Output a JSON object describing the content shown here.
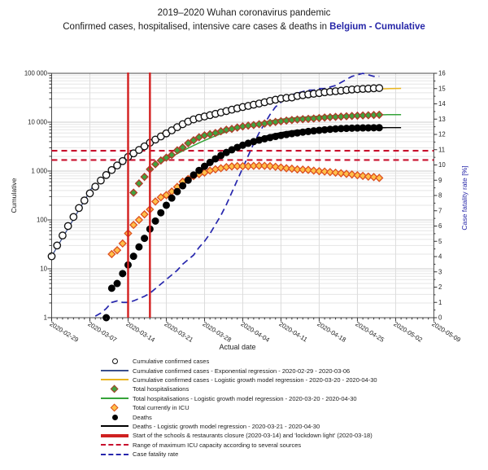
{
  "header": {
    "title": "2019–2020 Wuhan coronavirus pandemic",
    "subtitle_prefix": "Confirmed cases, hospitalised, intensive care cases & deaths in ",
    "subtitle_accent": "Belgium - Cumulative",
    "accent_color": "#2626a8"
  },
  "legend": {
    "items": [
      {
        "id": "confirmed",
        "marker": {
          "type": "circle-open"
        },
        "label": "Cumulative confirmed cases"
      },
      {
        "id": "confirmed-exp",
        "marker": {
          "type": "line",
          "color": "#3a4e8c"
        },
        "label": "Cumulative confirmed cases - Exponential regression - 2020-02-29 - 2020-03-06"
      },
      {
        "id": "confirmed-logistic",
        "marker": {
          "type": "line",
          "color": "#e9b51f"
        },
        "label": "Cumulative confirmed cases - Logistic growth model regression - 2020-03-20 - 2020-04-30"
      },
      {
        "id": "hospitalisations",
        "marker": {
          "type": "diamond",
          "fill": "#41a33f",
          "stroke": "#b03a28"
        },
        "label": "Total hospitalisations"
      },
      {
        "id": "hospitalisations-logistic",
        "marker": {
          "type": "line",
          "color": "#35a339"
        },
        "label": "Total hospitalisations - Logistic growth model regression - 2020-03-20 - 2020-04-30"
      },
      {
        "id": "icu",
        "marker": {
          "type": "diamond",
          "fill": "#ffc04a",
          "stroke": "#dd4f1f"
        },
        "label": "Total currently in ICU"
      },
      {
        "id": "deaths",
        "marker": {
          "type": "circle-filled",
          "color": "#000000"
        },
        "label": "Deaths"
      },
      {
        "id": "deaths-logistic",
        "marker": {
          "type": "line",
          "color": "#000000"
        },
        "label": "Deaths - Logistic growth model regression - 2020-03-21 - 2020-04-30"
      },
      {
        "id": "closure-lines",
        "marker": {
          "type": "thick-line",
          "color": "#cf2020"
        },
        "label": "Start of the schools & restaurants closure (2020-03-14) and 'lockdown light' (2020-03-18)"
      },
      {
        "id": "icu-capacity",
        "marker": {
          "type": "dash-line",
          "color": "#c8102e"
        },
        "label": "Range of maximum ICU capacity according to several sources"
      },
      {
        "id": "case-fatality-rate",
        "marker": {
          "type": "dash-line",
          "color": "#2727ad"
        },
        "label": "Case fatality rate"
      }
    ]
  },
  "chart_data": {
    "type": "line",
    "title": "2019–2020 Wuhan coronavirus pandemic — Confirmed cases, hospitalised, intensive care cases & deaths in Belgium - Cumulative",
    "x_axis": {
      "label": "Actual date",
      "start_date": "2020-02-29",
      "tick_labels": [
        "2020-02-29",
        "2020-03-07",
        "2020-03-14",
        "2020-03-21",
        "2020-03-28",
        "2020-04-04",
        "2020-04-11",
        "2020-04-18",
        "2020-04-25",
        "2020-05-02",
        "2020-05-09"
      ],
      "tick_interval_days": 7,
      "range_days": [
        0,
        70
      ]
    },
    "y_left": {
      "label": "Cumulative",
      "scale": "log",
      "range": [
        1,
        100000
      ],
      "tick_values": [
        1,
        10,
        100,
        1000,
        10000,
        100000
      ],
      "tick_labels": [
        "1",
        "10",
        "100",
        "1 000",
        "10 000",
        "100 000"
      ]
    },
    "y_right": {
      "label": "Case fatality rate [%]",
      "scale": "linear",
      "range": [
        0,
        16
      ],
      "tick_step": 1,
      "color": "#2626a8"
    },
    "grid": {
      "h_minor": true,
      "h_major": true,
      "v_weekly": true
    },
    "series": [
      {
        "id": "confirmed",
        "name": "Cumulative confirmed cases",
        "kind": "scatter",
        "marker": "circle-open",
        "axis": "left",
        "marker_fill": "#ffffff",
        "marker_stroke": "#101010",
        "start_day": 0,
        "values": [
          18,
          30,
          48,
          75,
          115,
          175,
          250,
          350,
          480,
          640,
          830,
          1050,
          1300,
          1600,
          1950,
          2300,
          2700,
          3200,
          3800,
          4400,
          5100,
          5900,
          6800,
          7900,
          9100,
          10300,
          11400,
          12300,
          13100,
          13900,
          14800,
          15800,
          16900,
          18000,
          19200,
          20400,
          21500,
          22800,
          24100,
          25600,
          27300,
          28800,
          30400,
          31400,
          32000,
          34400,
          35700,
          37000,
          38100,
          39400,
          40900,
          41900,
          43000,
          44000,
          45500,
          46600,
          47400,
          48000,
          48600,
          49300,
          49900
        ]
      },
      {
        "id": "confirmed-exp",
        "name": "Cumulative confirmed cases - Exponential regression",
        "kind": "model",
        "axis": "left",
        "color": "#3a4e8c",
        "width": 1.3,
        "model": {
          "form": "exp",
          "a": 18,
          "k": 0.438,
          "day_range": [
            0,
            7.5
          ]
        }
      },
      {
        "id": "confirmed-logistic",
        "name": "Cumulative confirmed cases - Logistic growth model regression",
        "kind": "model",
        "axis": "left",
        "color": "#e9b51f",
        "width": 1.5,
        "model": {
          "form": "logistic",
          "L": 51000,
          "k": 0.12,
          "x0": 37,
          "day_range": [
            20,
            64
          ]
        }
      },
      {
        "id": "hospitalisations",
        "name": "Total hospitalisations",
        "kind": "scatter",
        "marker": "diamond",
        "axis": "left",
        "marker_fill": "#41a33f",
        "marker_stroke": "#b03a28",
        "start_day": 15,
        "values": [
          361,
          558,
          759,
          1089,
          1380,
          1643,
          1881,
          2137,
          2652,
          3042,
          3717,
          4269,
          4920,
          5376,
          5688,
          6012,
          6525,
          7007,
          7284,
          7764,
          8205,
          8505,
          8751,
          9083,
          9385,
          9722,
          10107,
          10468,
          10785,
          11072,
          11320,
          11521,
          11684,
          11878,
          12153,
          12441,
          12641,
          12823,
          13006,
          13197,
          13399,
          13577,
          13716,
          13858,
          14022,
          14165
        ]
      },
      {
        "id": "hospitalisations-logistic",
        "name": "Total hospitalisations - Logistic growth model regression",
        "kind": "model",
        "axis": "left",
        "color": "#35a339",
        "width": 1.5,
        "model": {
          "form": "logistic",
          "L": 14400,
          "k": 0.16,
          "x0": 33.5,
          "day_range": [
            20,
            64
          ]
        }
      },
      {
        "id": "icu",
        "name": "Total currently in ICU",
        "kind": "scatter",
        "marker": "diamond",
        "axis": "left",
        "marker_fill": "#ffc04a",
        "marker_stroke": "#dd4f1f",
        "start_day": 11,
        "values": [
          20,
          24,
          33,
          53,
          79,
          100,
          130,
          164,
          238,
          290,
          322,
          381,
          474,
          605,
          690,
          789,
          867,
          927,
          1021,
          1088,
          1144,
          1205,
          1245,
          1261,
          1260,
          1257,
          1276,
          1285,
          1278,
          1262,
          1223,
          1182,
          1140,
          1119,
          1081,
          1071,
          1056,
          1020,
          993,
          976,
          953,
          927,
          903,
          876,
          852,
          821,
          796,
          771,
          755,
          723
        ]
      },
      {
        "id": "deaths",
        "name": "Deaths",
        "kind": "scatter",
        "marker": "circle-filled",
        "axis": "left",
        "marker_fill": "#000000",
        "marker_stroke": "#000000",
        "start_day": 10,
        "values": [
          1,
          4,
          5,
          8,
          12,
          18,
          28,
          42,
          65,
          95,
          140,
          200,
          280,
          380,
          500,
          650,
          830,
          1030,
          1250,
          1500,
          1780,
          2080,
          2400,
          2720,
          3050,
          3380,
          3700,
          4000,
          4290,
          4570,
          4840,
          5100,
          5350,
          5590,
          5820,
          6040,
          6250,
          6450,
          6640,
          6820,
          6990,
          7150,
          7290,
          7400,
          7480,
          7540,
          7590,
          7630,
          7660,
          7690,
          7710
        ]
      },
      {
        "id": "deaths-logistic",
        "name": "Deaths - Logistic growth model regression",
        "kind": "model",
        "axis": "left",
        "color": "#000000",
        "width": 1.4,
        "model": {
          "form": "logistic",
          "L": 7750,
          "k": 0.22,
          "x0": 36,
          "day_range": [
            21,
            64
          ]
        }
      },
      {
        "id": "case-fatality-rate",
        "name": "Case fatality rate",
        "kind": "dash-line",
        "axis": "right",
        "color": "#2727ad",
        "width": 1.7,
        "dash": "8 5",
        "start_day": 8,
        "values": [
          0.1,
          0.3,
          0.6,
          1.0,
          1.1,
          1.0,
          1.0,
          1.1,
          1.25,
          1.4,
          1.6,
          1.9,
          2.2,
          2.5,
          2.8,
          3.1,
          3.5,
          3.8,
          4.1,
          4.6,
          5.0,
          5.5,
          6.1,
          6.7,
          7.4,
          8.2,
          9.0,
          9.8,
          10.6,
          11.4,
          12.1,
          12.7,
          13.3,
          13.8,
          14.1,
          14.4,
          14.6,
          14.7,
          14.8,
          14.9,
          14.9,
          15.0,
          15.0,
          15.1,
          15.2,
          15.4,
          15.6,
          15.8,
          15.9,
          16.0,
          15.9,
          15.8,
          15.8
        ]
      }
    ],
    "annotations": {
      "event_lines": {
        "days": [
          14,
          18
        ],
        "dates": [
          "2020-03-14",
          "2020-03-18"
        ],
        "color": "#d31f1f",
        "label": "Start of the schools & restaurants closure (2020-03-14) and 'lockdown light' (2020-03-18)"
      },
      "icu_capacity_range": {
        "values": [
          1680,
          2600
        ],
        "color": "#c8102e",
        "dash": "7 5",
        "label": "Range of maximum ICU capacity according to several sources"
      }
    },
    "colors": {
      "grid_minor": "#e5e5e5",
      "grid_major": "#cdcdcd",
      "grid_week": "#dcdcdc",
      "plot_border": "#4a4a4a",
      "tick_text": "#222222",
      "right_axis_text": "#2626a8"
    }
  }
}
